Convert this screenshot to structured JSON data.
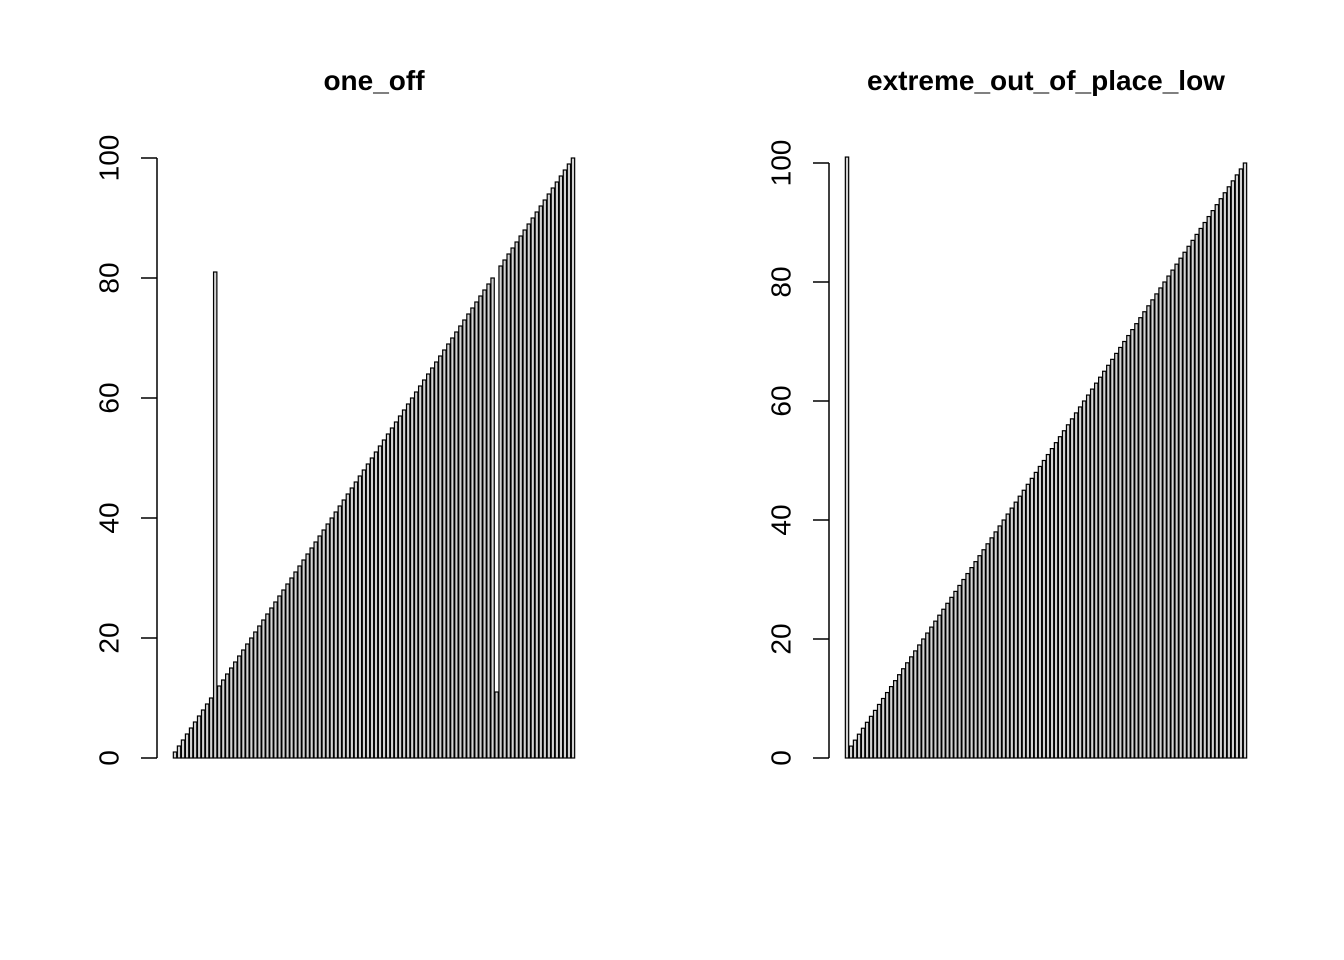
{
  "chart_data": [
    {
      "type": "bar",
      "title": "one_off",
      "xlabel": "",
      "ylabel": "",
      "ylim": [
        0,
        100
      ],
      "yticks": [
        0,
        20,
        40,
        60,
        80,
        100
      ],
      "grid": false,
      "bar_fill": "#d3d3d3",
      "bar_stroke": "#000000",
      "values": [
        1,
        2,
        3,
        4,
        5,
        6,
        7,
        8,
        9,
        10,
        81,
        12,
        13,
        14,
        15,
        16,
        17,
        18,
        19,
        20,
        21,
        22,
        23,
        24,
        25,
        26,
        27,
        28,
        29,
        30,
        31,
        32,
        33,
        34,
        35,
        36,
        37,
        38,
        39,
        40,
        41,
        42,
        43,
        44,
        45,
        46,
        47,
        48,
        49,
        50,
        51,
        52,
        53,
        54,
        55,
        56,
        57,
        58,
        59,
        60,
        61,
        62,
        63,
        64,
        65,
        66,
        67,
        68,
        69,
        70,
        71,
        72,
        73,
        74,
        75,
        76,
        77,
        78,
        79,
        80,
        11,
        82,
        83,
        84,
        85,
        86,
        87,
        88,
        89,
        90,
        91,
        92,
        93,
        94,
        95,
        96,
        97,
        98,
        99,
        100
      ]
    },
    {
      "type": "bar",
      "title": "extreme_out_of_place_low",
      "xlabel": "",
      "ylabel": "",
      "ylim": [
        0,
        100
      ],
      "yticks": [
        0,
        20,
        40,
        60,
        80,
        100
      ],
      "grid": false,
      "bar_fill": "#d3d3d3",
      "bar_stroke": "#000000",
      "values": [
        101,
        2,
        3,
        4,
        5,
        6,
        7,
        8,
        9,
        10,
        11,
        12,
        13,
        14,
        15,
        16,
        17,
        18,
        19,
        20,
        21,
        22,
        23,
        24,
        25,
        26,
        27,
        28,
        29,
        30,
        31,
        32,
        33,
        34,
        35,
        36,
        37,
        38,
        39,
        40,
        41,
        42,
        43,
        44,
        45,
        46,
        47,
        48,
        49,
        50,
        51,
        52,
        53,
        54,
        55,
        56,
        57,
        58,
        59,
        60,
        61,
        62,
        63,
        64,
        65,
        66,
        67,
        68,
        69,
        70,
        71,
        72,
        73,
        74,
        75,
        76,
        77,
        78,
        79,
        80,
        81,
        82,
        83,
        84,
        85,
        86,
        87,
        88,
        89,
        90,
        91,
        92,
        93,
        94,
        95,
        96,
        97,
        98,
        99,
        100
      ]
    }
  ]
}
